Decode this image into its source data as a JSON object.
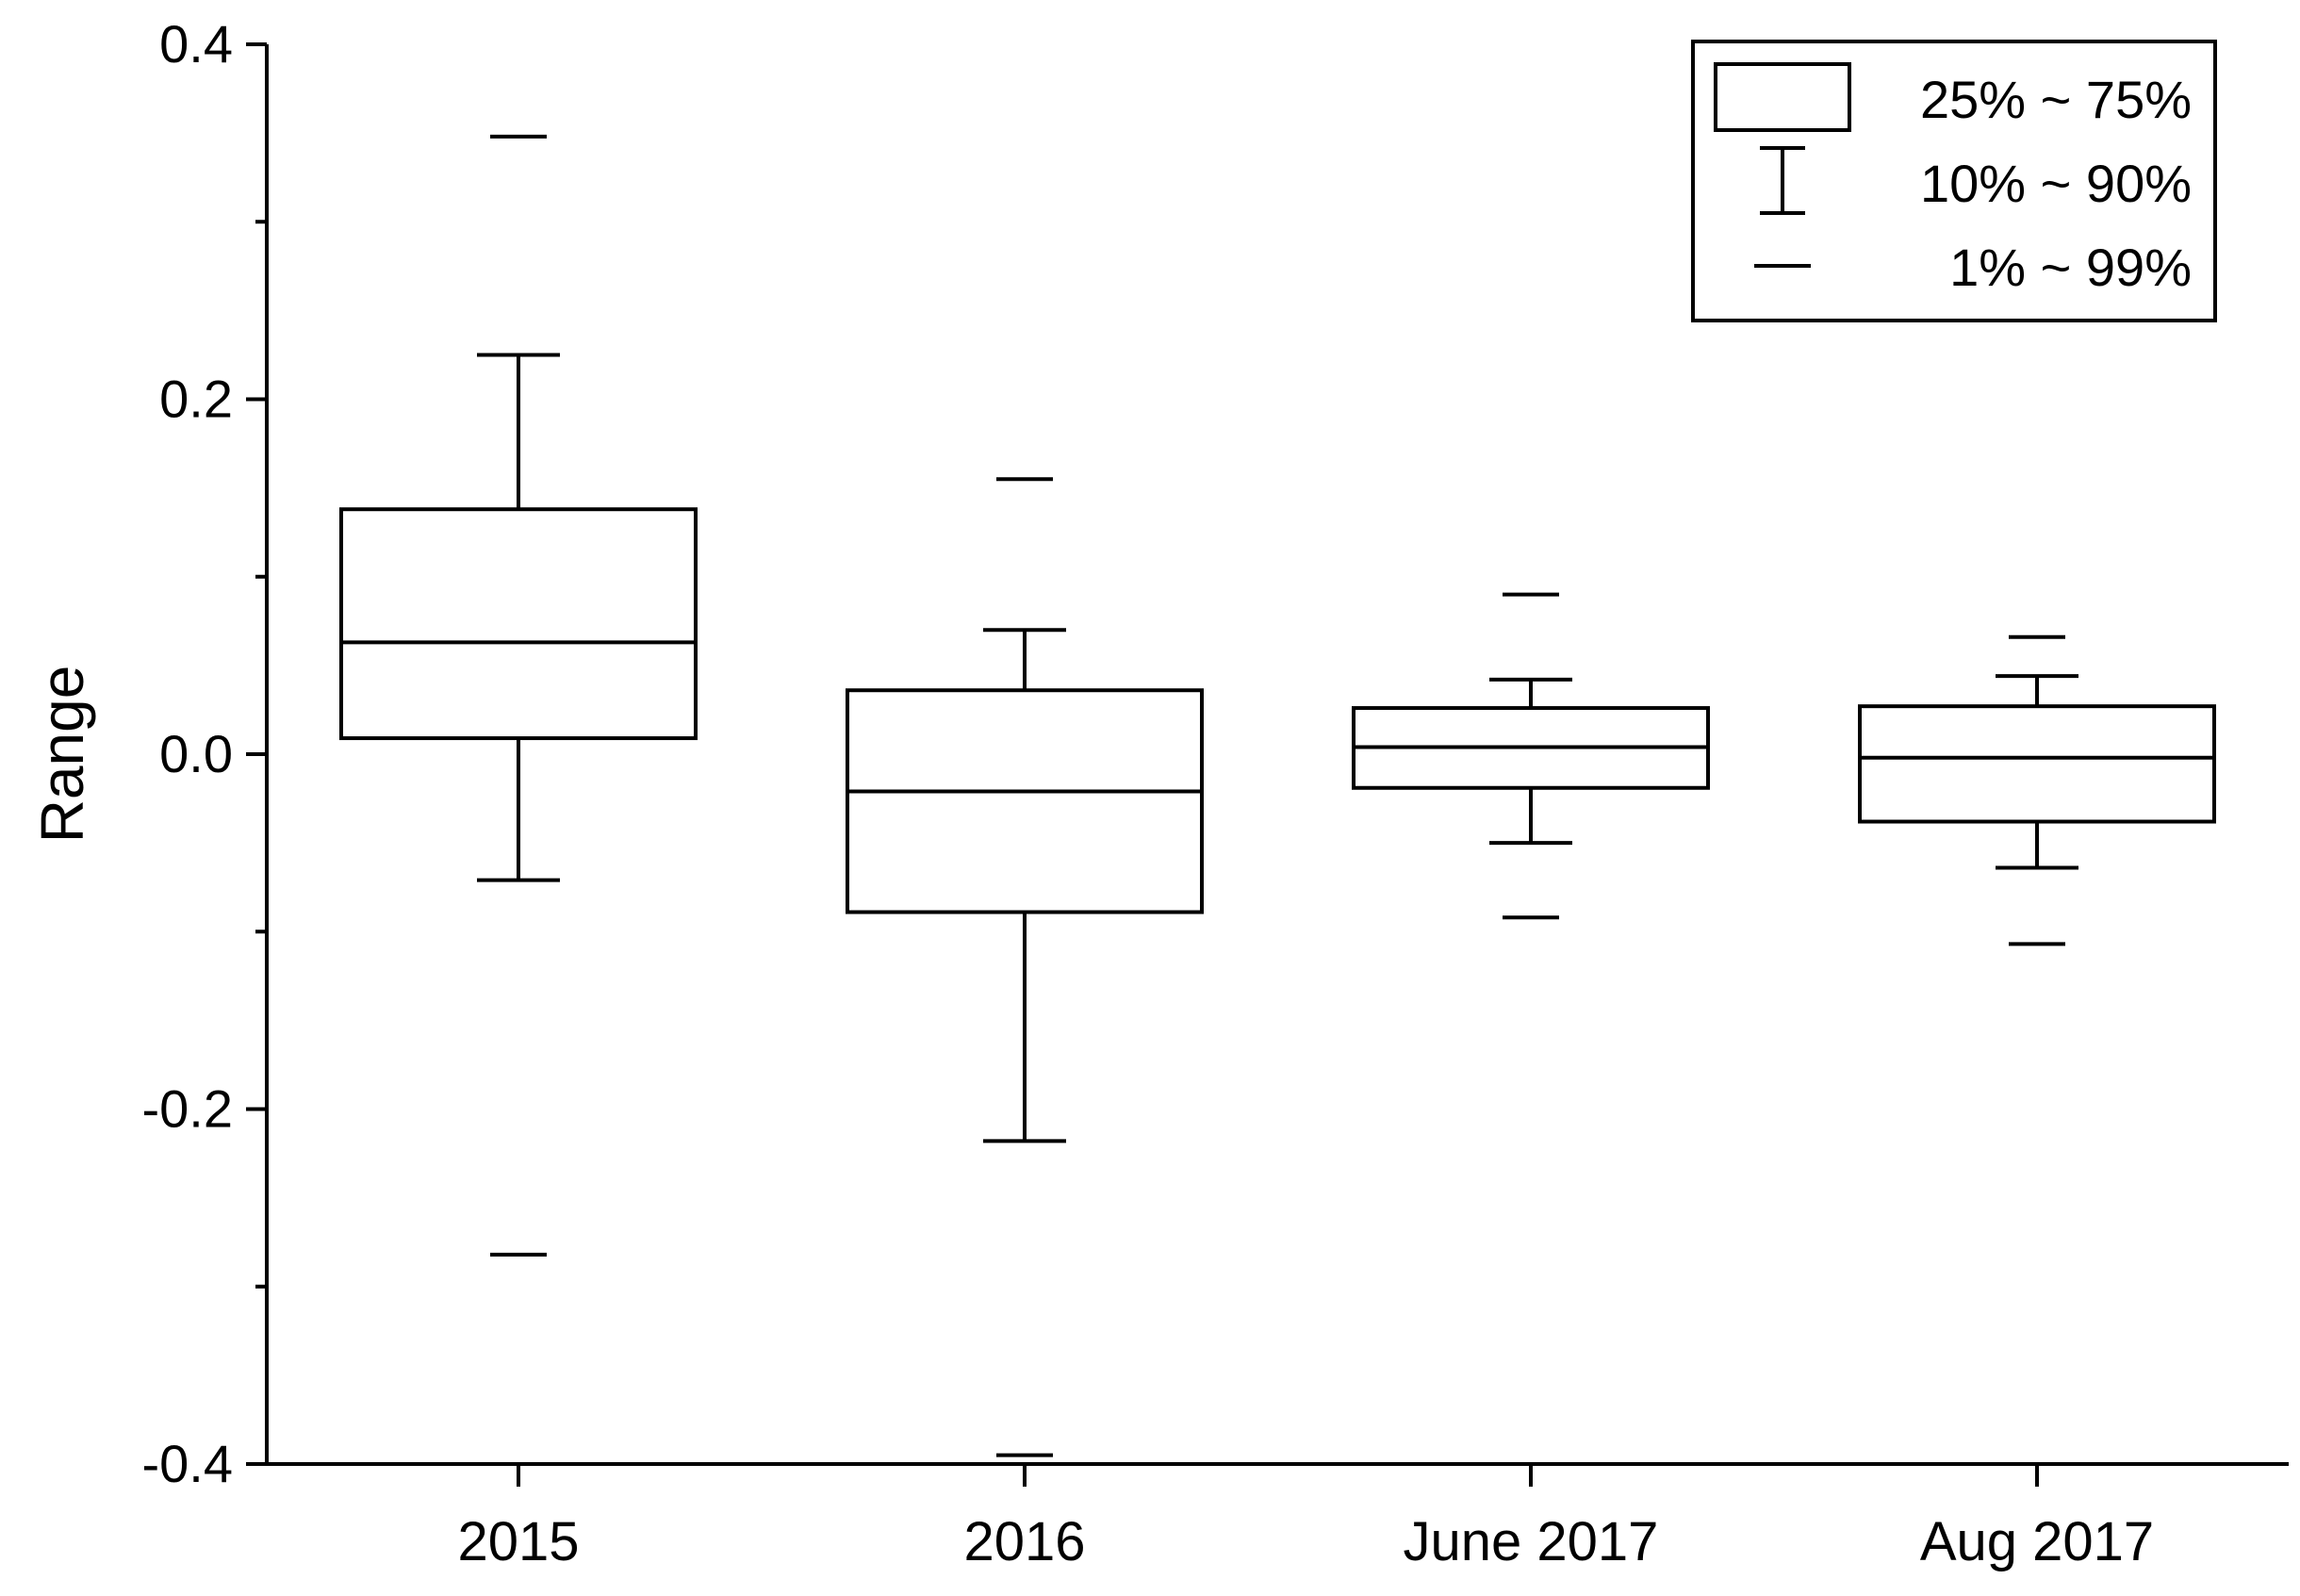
{
  "chart_data": {
    "type": "box",
    "title": "",
    "xlabel": "",
    "ylabel": "Range",
    "ylim": [
      -0.4,
      0.4
    ],
    "yticks": [
      -0.4,
      -0.2,
      0.0,
      0.2,
      0.4
    ],
    "ytick_labels": [
      "-0.4",
      "-0.2",
      "0.0",
      "0.2",
      "0.4"
    ],
    "categories": [
      "2015",
      "2016",
      "June 2017",
      "Aug 2017"
    ],
    "boxes": [
      {
        "category": "2015",
        "p1": -0.282,
        "p10": -0.071,
        "q1": 0.009,
        "median": 0.063,
        "q3": 0.138,
        "p90": 0.225,
        "p99": 0.348
      },
      {
        "category": "2016",
        "p1": -0.395,
        "p10": -0.218,
        "q1": -0.089,
        "median": -0.021,
        "q3": 0.036,
        "p90": 0.07,
        "p99": 0.155
      },
      {
        "category": "June 2017",
        "p1": -0.092,
        "p10": -0.05,
        "q1": -0.019,
        "median": 0.004,
        "q3": 0.026,
        "p90": 0.042,
        "p99": 0.09
      },
      {
        "category": "Aug 2017",
        "p1": -0.107,
        "p10": -0.064,
        "q1": -0.038,
        "median": -0.002,
        "q3": 0.027,
        "p90": 0.044,
        "p99": 0.066
      }
    ],
    "legend": {
      "placement": "top-right",
      "entries": [
        {
          "symbol": "box",
          "label": "25% ~ 75%"
        },
        {
          "symbol": "whisker",
          "label": "10% ~ 90%"
        },
        {
          "symbol": "dash",
          "label": "1% ~ 99%"
        }
      ]
    },
    "grid": false,
    "colors": {
      "stroke": "#000000",
      "fill": "#ffffff"
    }
  }
}
